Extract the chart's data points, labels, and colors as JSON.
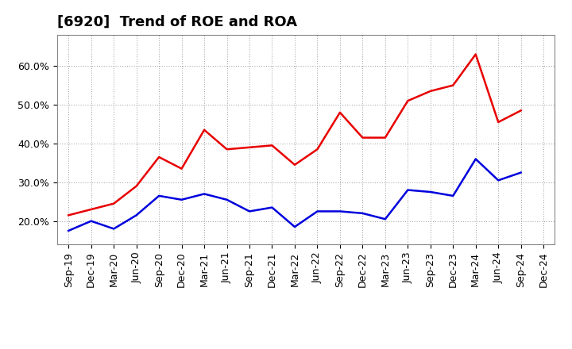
{
  "title": "[6920]  Trend of ROE and ROA",
  "x_labels": [
    "Sep-19",
    "Dec-19",
    "Mar-20",
    "Jun-20",
    "Sep-20",
    "Dec-20",
    "Mar-21",
    "Jun-21",
    "Sep-21",
    "Dec-21",
    "Mar-22",
    "Jun-22",
    "Sep-22",
    "Dec-22",
    "Mar-23",
    "Jun-23",
    "Sep-23",
    "Dec-23",
    "Mar-24",
    "Jun-24",
    "Sep-24",
    "Dec-24"
  ],
  "roe": [
    21.5,
    23.0,
    24.5,
    29.0,
    36.5,
    33.5,
    43.5,
    38.5,
    39.0,
    39.5,
    34.5,
    38.5,
    48.0,
    41.5,
    41.5,
    51.0,
    53.5,
    55.0,
    63.0,
    45.5,
    48.5,
    null
  ],
  "roa": [
    17.5,
    20.0,
    18.0,
    21.5,
    26.5,
    25.5,
    27.0,
    25.5,
    22.5,
    23.5,
    18.5,
    22.5,
    22.5,
    22.0,
    20.5,
    28.0,
    27.5,
    26.5,
    36.0,
    30.5,
    32.5,
    null
  ],
  "roe_color": "#e80000",
  "roa_color": "#0000dd",
  "background_color": "#ffffff",
  "plot_background": "#ffffff",
  "grid_color": "#999999",
  "ylim": [
    14,
    68
  ],
  "yticks": [
    20.0,
    30.0,
    40.0,
    50.0,
    60.0
  ],
  "ytick_labels": [
    "20.0%",
    "30.0%",
    "40.0%",
    "50.0%",
    "60.0%"
  ],
  "title_fontsize": 13,
  "axis_fontsize": 9,
  "legend_fontsize": 11,
  "line_width": 1.8
}
